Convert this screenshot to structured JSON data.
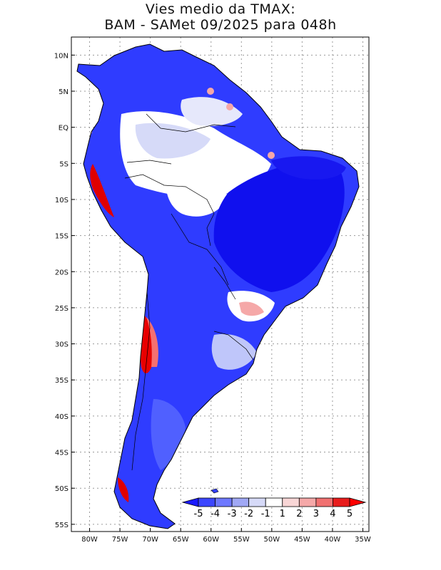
{
  "title": {
    "line1": "Vies medio da TMAX:",
    "line2": "BAM - SAMet 09/2025  para 048h"
  },
  "map": {
    "region": "South America",
    "lon_range": [
      -83,
      -34
    ],
    "lat_range": [
      -56,
      12.5
    ],
    "lat_labels": [
      "10N",
      "5N",
      "EQ",
      "5S",
      "10S",
      "15S",
      "20S",
      "25S",
      "30S",
      "35S",
      "40S",
      "45S",
      "50S",
      "55S"
    ],
    "lat_values": [
      10,
      5,
      0,
      -5,
      -10,
      -15,
      -20,
      -25,
      -30,
      -35,
      -40,
      -45,
      -50,
      -55
    ],
    "lon_labels": [
      "80W",
      "75W",
      "70W",
      "65W",
      "60W",
      "55W",
      "50W",
      "45W",
      "40W",
      "35W"
    ],
    "lon_values": [
      -80,
      -75,
      -70,
      -65,
      -60,
      -55,
      -50,
      -45,
      -40,
      -35
    ]
  },
  "colorbar": {
    "labels": [
      "-5",
      "-4",
      "-3",
      "-2",
      "-1",
      "1",
      "2",
      "3",
      "4",
      "5"
    ],
    "colors": [
      "#1a1aff",
      "#3c46ff",
      "#6e78ff",
      "#a0a8f5",
      "#d6daf8",
      "#ffffff",
      "#f8d6d6",
      "#f5a8a8",
      "#f07070",
      "#e81c1c",
      "#ff0000"
    ]
  },
  "colors": {
    "ocean": "#ffffff",
    "grid": "#9a9a9a",
    "border": "#000000",
    "strong_negative": "#1010ee",
    "negative": "#3340ff",
    "moderate_negative": "#6f7bff",
    "weak_negative": "#bfc6fa",
    "neutral": "#ffffff",
    "positive": "#f07070",
    "strong_positive": "#e00000"
  }
}
